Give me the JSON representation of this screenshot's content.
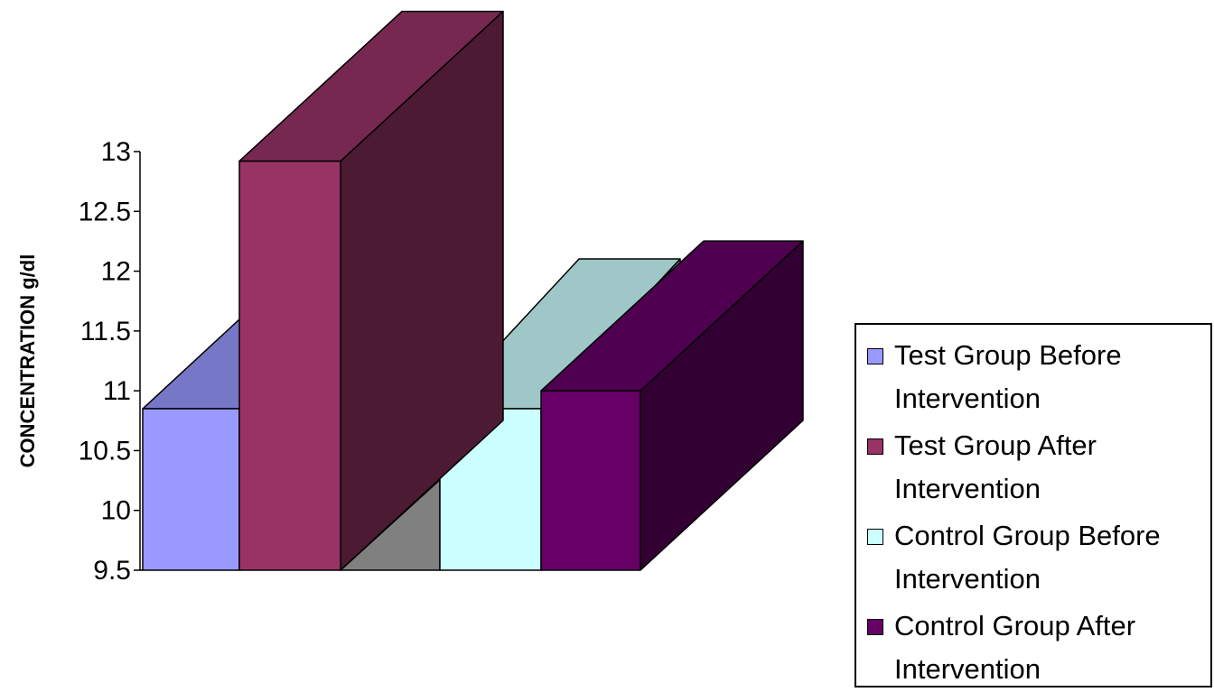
{
  "chart_data": {
    "type": "bar",
    "style": "3d-clustered",
    "ylabel": "CONCENTRATION  g/dl",
    "ylim": [
      9.5,
      13
    ],
    "yticks": [
      "9.5",
      "10",
      "10.5",
      "11",
      "11.5",
      "12",
      "12.5",
      "13"
    ],
    "legend_position": "right",
    "series": [
      {
        "name": "Test Group Before Intervention",
        "values": [
          10.85
        ],
        "color": "#9999ff"
      },
      {
        "name": "Test Group After Intervention",
        "values": [
          12.92
        ],
        "color": "#993366"
      },
      {
        "name": "Control Group Before Intervention",
        "values": [
          10.85
        ],
        "color": "#ccffff"
      },
      {
        "name": "Control Group After Intervention",
        "values": [
          11.0
        ],
        "color": "#660066"
      }
    ],
    "floor_color": "#808080"
  }
}
